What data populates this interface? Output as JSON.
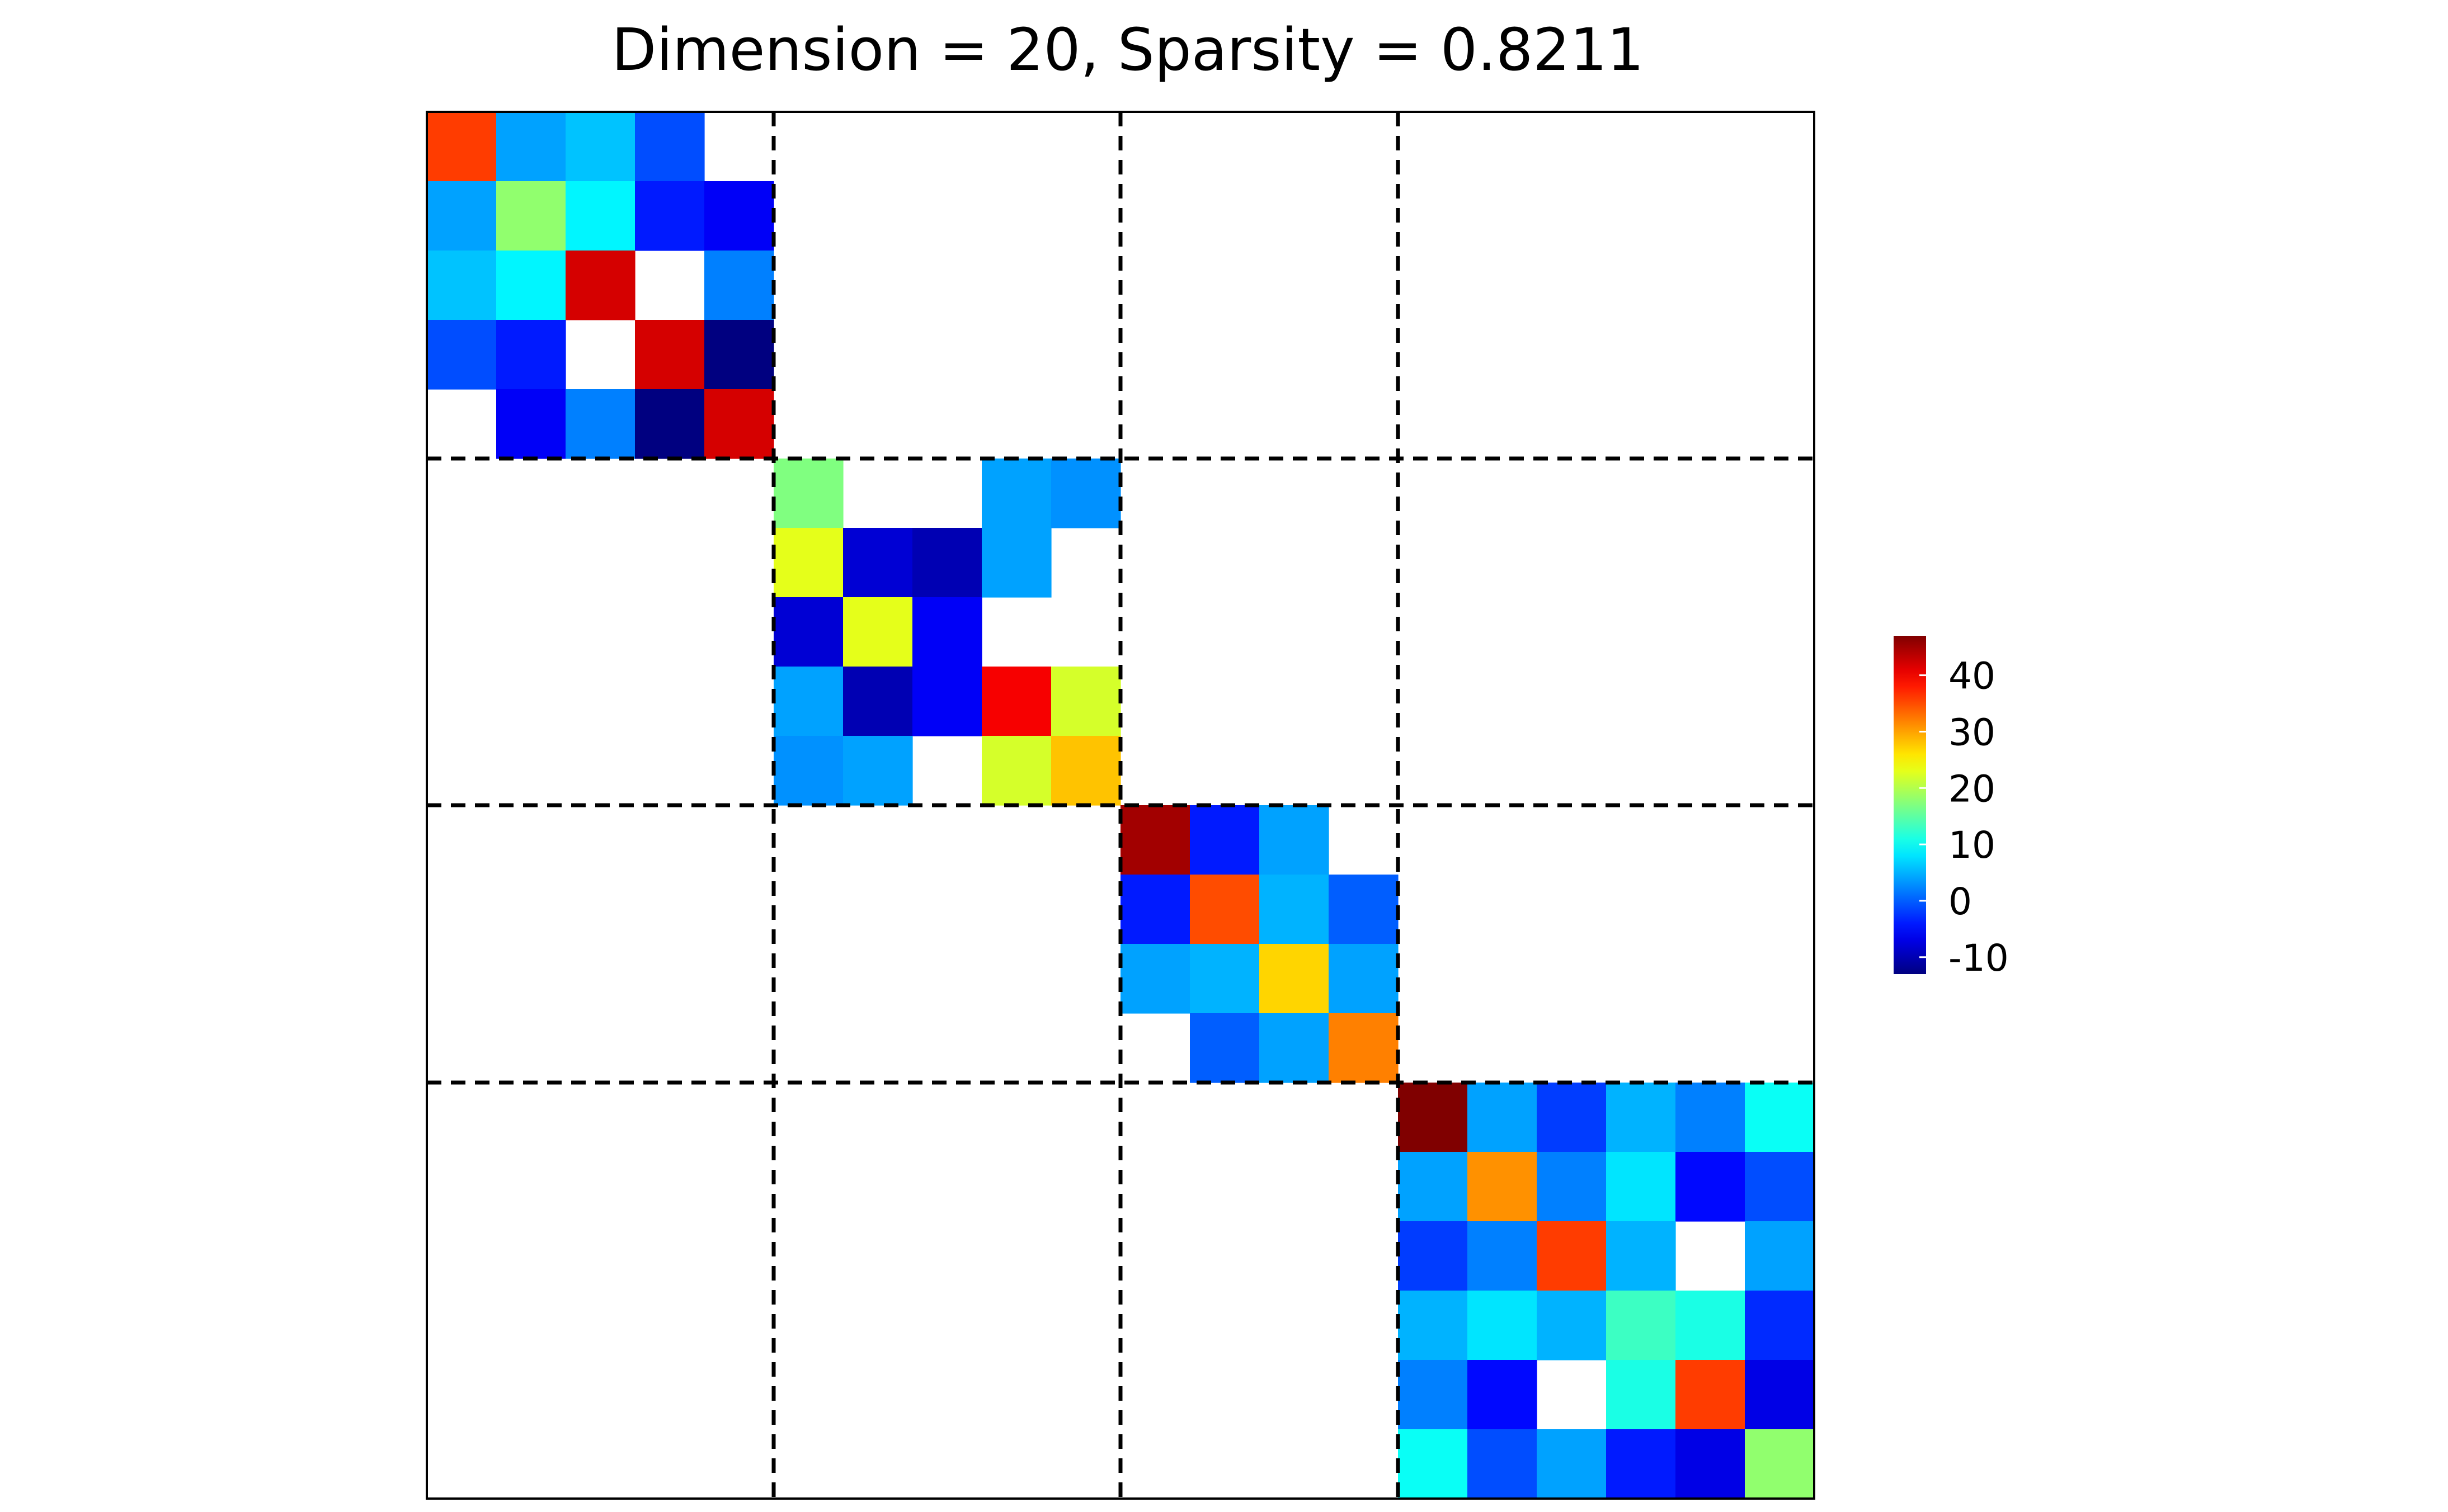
{
  "chart_data": {
    "type": "heatmap",
    "title": "Dimension = 20, Sparsity = 0.8211",
    "xlabel": "",
    "ylabel": "",
    "dimension": 20,
    "sparsity": 0.8211,
    "block_boundaries": [
      5,
      10,
      14
    ],
    "blank_value": null,
    "colormap": "jet",
    "colorbar": {
      "min": -13,
      "max": 47,
      "ticks": [
        -10,
        0,
        10,
        20,
        30,
        40
      ],
      "tick_labels": [
        "-10",
        "0",
        "10",
        "20",
        "30",
        "40"
      ],
      "placement": "right"
    },
    "matrix": [
      [
        36,
        4,
        6,
        -1,
        null,
        null,
        null,
        null,
        null,
        null,
        null,
        null,
        null,
        null,
        null,
        null,
        null,
        null,
        null,
        null
      ],
      [
        4,
        18,
        9,
        -4,
        -6,
        null,
        null,
        null,
        null,
        null,
        null,
        null,
        null,
        null,
        null,
        null,
        null,
        null,
        null,
        null
      ],
      [
        6,
        9,
        42,
        null,
        2,
        null,
        null,
        null,
        null,
        null,
        null,
        null,
        null,
        null,
        null,
        null,
        null,
        null,
        null,
        null
      ],
      [
        -1,
        -4,
        null,
        42,
        -13,
        null,
        null,
        null,
        null,
        null,
        null,
        null,
        null,
        null,
        null,
        null,
        null,
        null,
        null,
        null
      ],
      [
        null,
        -6,
        2,
        -13,
        42,
        null,
        null,
        null,
        null,
        null,
        null,
        null,
        null,
        null,
        null,
        null,
        null,
        null,
        null,
        null
      ],
      [
        null,
        null,
        null,
        null,
        null,
        17,
        null,
        null,
        4,
        3,
        null,
        null,
        null,
        null,
        null,
        null,
        null,
        null,
        null,
        null
      ],
      [
        null,
        null,
        null,
        null,
        null,
        23,
        -8,
        -10,
        4,
        null,
        null,
        null,
        null,
        null,
        null,
        null,
        null,
        null,
        null,
        null
      ],
      [
        null,
        null,
        null,
        null,
        null,
        -8,
        23,
        -6,
        null,
        null,
        null,
        null,
        null,
        null,
        null,
        null,
        null,
        null,
        null,
        null
      ],
      [
        null,
        null,
        null,
        null,
        null,
        4,
        -10,
        -6,
        40,
        22,
        null,
        null,
        null,
        null,
        null,
        null,
        null,
        null,
        null,
        null
      ],
      [
        null,
        null,
        null,
        null,
        null,
        3,
        4,
        null,
        22,
        28,
        null,
        null,
        null,
        null,
        null,
        null,
        null,
        null,
        null,
        null
      ],
      [
        null,
        null,
        null,
        null,
        null,
        null,
        null,
        null,
        null,
        null,
        45,
        -4,
        4,
        null,
        null,
        null,
        null,
        null,
        null,
        null
      ],
      [
        null,
        null,
        null,
        null,
        null,
        null,
        null,
        null,
        null,
        null,
        -4,
        35,
        5,
        0,
        null,
        null,
        null,
        null,
        null,
        null
      ],
      [
        null,
        null,
        null,
        null,
        null,
        null,
        null,
        null,
        null,
        null,
        4,
        5,
        27,
        4,
        null,
        null,
        null,
        null,
        null,
        null
      ],
      [
        null,
        null,
        null,
        null,
        null,
        null,
        null,
        null,
        null,
        null,
        null,
        0,
        4,
        32,
        null,
        null,
        null,
        null,
        null,
        null
      ],
      [
        null,
        null,
        null,
        null,
        null,
        null,
        null,
        null,
        null,
        null,
        null,
        null,
        null,
        null,
        47,
        4,
        -2,
        5,
        2,
        10
      ],
      [
        null,
        null,
        null,
        null,
        null,
        null,
        null,
        null,
        null,
        null,
        null,
        null,
        null,
        null,
        4,
        31,
        2,
        8,
        -5,
        -1
      ],
      [
        null,
        null,
        null,
        null,
        null,
        null,
        null,
        null,
        null,
        null,
        null,
        null,
        null,
        null,
        -2,
        2,
        36,
        5,
        null,
        4
      ],
      [
        null,
        null,
        null,
        null,
        null,
        null,
        null,
        null,
        null,
        null,
        null,
        null,
        null,
        null,
        5,
        8,
        5,
        13,
        11,
        -3
      ],
      [
        null,
        null,
        null,
        null,
        null,
        null,
        null,
        null,
        null,
        null,
        null,
        null,
        null,
        null,
        2,
        -5,
        null,
        11,
        36,
        -7
      ],
      [
        null,
        null,
        null,
        null,
        null,
        null,
        null,
        null,
        null,
        null,
        null,
        null,
        null,
        null,
        10,
        -1,
        4,
        -4,
        -7,
        18
      ]
    ]
  }
}
